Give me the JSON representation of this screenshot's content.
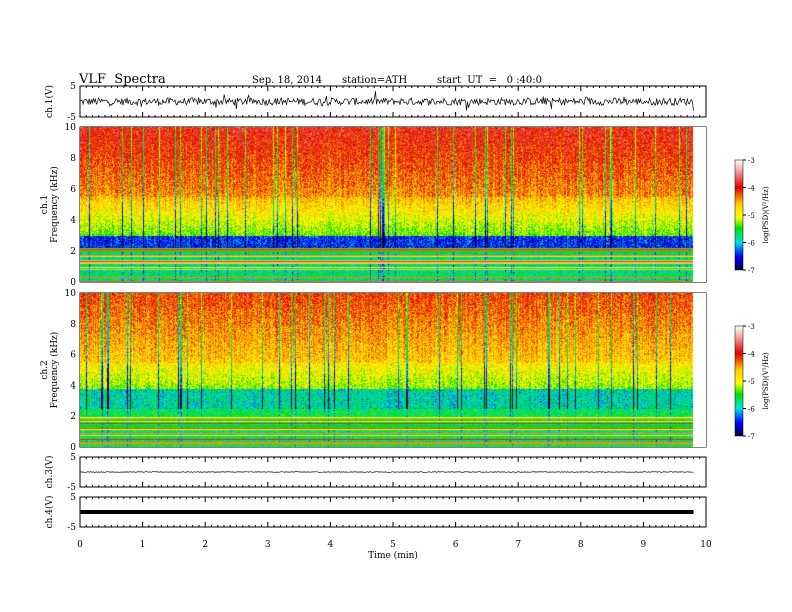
{
  "header": {
    "title": "VLF  Spectra",
    "date": "Sep. 18, 2014",
    "station": "station=ATH",
    "start": "start  UT  =   0 :40:0"
  },
  "chart_data": [
    {
      "type": "line",
      "panel": "ch1-waveform",
      "ylabel": "ch.1(V)",
      "ylim": [
        -5,
        5
      ],
      "yticks": [
        "5",
        "-5"
      ],
      "level": 0,
      "noise": "high"
    },
    {
      "type": "heatmap",
      "panel": "ch1-spectrogram",
      "ylabel": "ch.1\nFrequency  (kHz)",
      "ylim": [
        0,
        10
      ],
      "yticks": [
        "0",
        "2",
        "4",
        "6",
        "8",
        "10"
      ],
      "colorbar": {
        "label": "log(PSD)(V²/Hz)",
        "range": [
          -7,
          -3
        ],
        "ticks": [
          "-3",
          "-4",
          "-5",
          "-6",
          "-7"
        ]
      }
    },
    {
      "type": "heatmap",
      "panel": "ch2-spectrogram",
      "ylabel": "ch.2\nFrequency  (kHz)",
      "ylim": [
        0,
        10
      ],
      "yticks": [
        "0",
        "2",
        "4",
        "6",
        "8",
        "10"
      ],
      "colorbar": {
        "label": "log(PSD)(V²/Hz)",
        "range": [
          -7,
          -3
        ],
        "ticks": [
          "-3",
          "-4",
          "-5",
          "-6",
          "-7"
        ]
      }
    },
    {
      "type": "line",
      "panel": "ch3-waveform",
      "ylabel": "ch.3(V)",
      "ylim": [
        -5,
        5
      ],
      "yticks": [
        "5",
        "-5"
      ],
      "level": 0,
      "noise": "low"
    },
    {
      "type": "line",
      "panel": "ch4-waveform",
      "ylabel": "ch.4(V)",
      "ylim": [
        -5,
        5
      ],
      "yticks": [
        "5",
        "-5"
      ],
      "level": 0,
      "noise": "flat"
    }
  ],
  "xaxis": {
    "label": "Time  (min)",
    "range": [
      0,
      10
    ],
    "data_end": 9.8,
    "ticks": [
      "0",
      "1",
      "2",
      "3",
      "4",
      "5",
      "6",
      "7",
      "8",
      "9",
      "10"
    ]
  }
}
